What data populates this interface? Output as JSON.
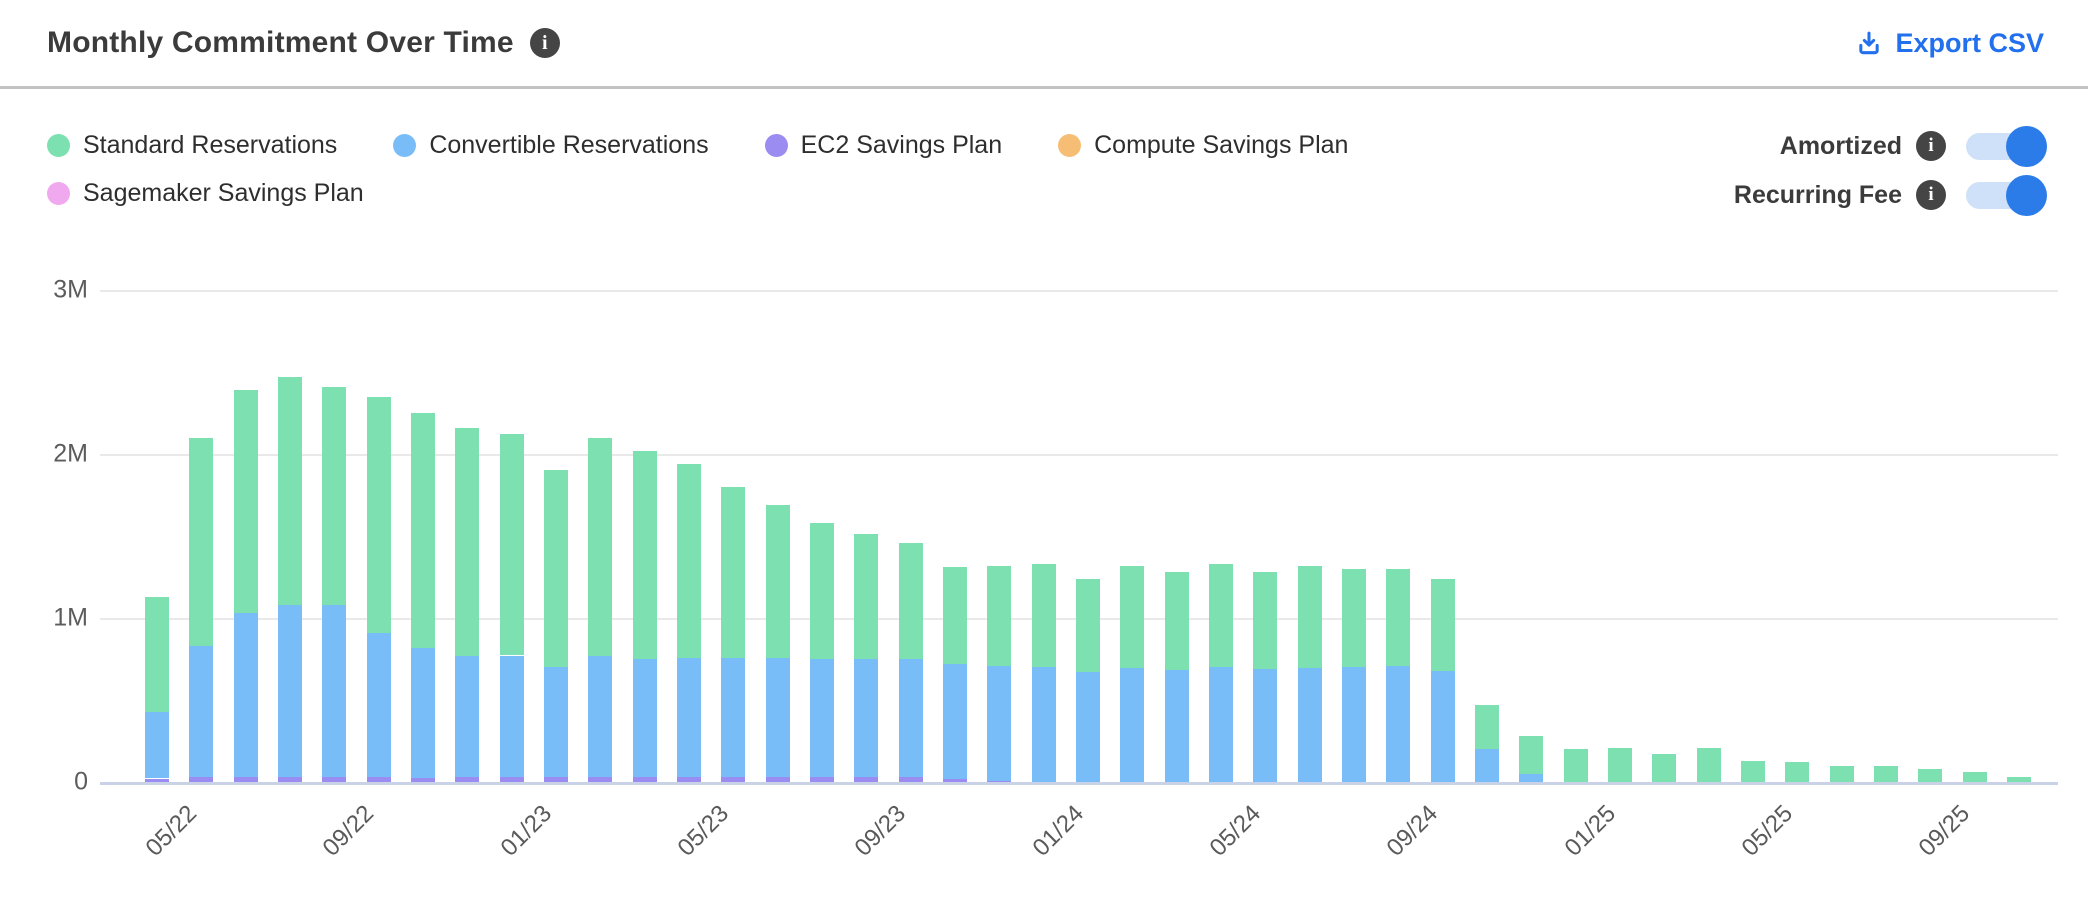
{
  "header": {
    "title": "Monthly Commitment Over Time",
    "title_info_icon": "info-icon",
    "export_label": "Export CSV"
  },
  "legend": {
    "items": [
      {
        "label": "Standard Reservations",
        "color": "#7de0b1"
      },
      {
        "label": "Convertible Reservations",
        "color": "#79bdf8"
      },
      {
        "label": "EC2 Savings Plan",
        "color": "#9a8cf0"
      },
      {
        "label": "Compute Savings Plan",
        "color": "#f6be75"
      },
      {
        "label": "Sagemaker Savings Plan",
        "color": "#f0a9ee"
      }
    ]
  },
  "toggles": [
    {
      "label": "Amortized",
      "state": "on"
    },
    {
      "label": "Recurring Fee",
      "state": "on"
    }
  ],
  "colors": {
    "accent_blue": "#2270ee",
    "toggle_track": "#cfe1f9",
    "toggle_knob": "#2b7ce9",
    "gridline": "#e9e9e9",
    "axis_line": "#c9d2e6"
  },
  "chart_data": {
    "type": "bar",
    "stacked": true,
    "title": "Monthly Commitment Over Time",
    "unit": "M (millions, amortized monthly commitment)",
    "ylim": [
      0,
      3
    ],
    "yticks": [
      {
        "value": 0,
        "label": "0"
      },
      {
        "value": 1,
        "label": "1M"
      },
      {
        "value": 2,
        "label": "2M"
      },
      {
        "value": 3,
        "label": "3M"
      }
    ],
    "x_label_every": 4,
    "x": [
      "05/22",
      "06/22",
      "07/22",
      "08/22",
      "09/22",
      "10/22",
      "11/22",
      "12/22",
      "01/23",
      "02/23",
      "03/23",
      "04/23",
      "05/23",
      "06/23",
      "07/23",
      "08/23",
      "09/23",
      "10/23",
      "11/23",
      "12/23",
      "01/24",
      "02/24",
      "03/24",
      "04/24",
      "05/24",
      "06/24",
      "07/24",
      "08/24",
      "09/24",
      "10/24",
      "11/24",
      "12/24",
      "01/25",
      "02/25",
      "03/25",
      "04/25",
      "05/25",
      "06/25",
      "07/25",
      "08/25",
      "09/25",
      "10/25",
      "11/25"
    ],
    "stack_bottom_to_top": [
      "Sagemaker Savings Plan",
      "EC2 Savings Plan",
      "Convertible Reservations",
      "Standard Reservations",
      "Compute Savings Plan"
    ],
    "series": [
      {
        "name": "Standard Reservations",
        "color": "#7de0b1",
        "values": [
          0.7,
          1.27,
          1.36,
          1.39,
          1.33,
          1.44,
          1.43,
          1.39,
          1.35,
          1.2,
          1.33,
          1.27,
          1.18,
          1.04,
          0.93,
          0.83,
          0.76,
          0.71,
          0.59,
          0.61,
          0.63,
          0.57,
          0.62,
          0.6,
          0.63,
          0.59,
          0.62,
          0.6,
          0.59,
          0.56,
          0.27,
          0.23,
          0.2,
          0.21,
          0.17,
          0.21,
          0.13,
          0.12,
          0.1,
          0.1,
          0.08,
          0.06,
          0.03
        ]
      },
      {
        "name": "Convertible Reservations",
        "color": "#79bdf8",
        "values": [
          0.41,
          0.8,
          1.0,
          1.05,
          1.05,
          0.88,
          0.79,
          0.74,
          0.74,
          0.67,
          0.74,
          0.72,
          0.73,
          0.73,
          0.73,
          0.72,
          0.72,
          0.72,
          0.7,
          0.7,
          0.7,
          0.67,
          0.7,
          0.68,
          0.7,
          0.69,
          0.7,
          0.7,
          0.71,
          0.68,
          0.2,
          0.05,
          0,
          0,
          0,
          0,
          0,
          0,
          0,
          0,
          0,
          0,
          0
        ]
      },
      {
        "name": "EC2 Savings Plan",
        "color": "#9a8cf0",
        "values": [
          0.02,
          0.03,
          0.03,
          0.03,
          0.03,
          0.03,
          0.03,
          0.03,
          0.03,
          0.03,
          0.03,
          0.03,
          0.03,
          0.03,
          0.03,
          0.03,
          0.03,
          0.03,
          0.02,
          0.01,
          0,
          0,
          0,
          0,
          0,
          0,
          0,
          0,
          0,
          0,
          0,
          0,
          0,
          0,
          0,
          0,
          0,
          0,
          0,
          0,
          0,
          0,
          0
        ]
      },
      {
        "name": "Compute Savings Plan",
        "color": "#f6be75",
        "values": [
          0,
          0,
          0,
          0,
          0,
          0,
          0,
          0,
          0,
          0,
          0,
          0,
          0,
          0,
          0,
          0,
          0,
          0,
          0,
          0,
          0,
          0,
          0,
          0,
          0,
          0,
          0,
          0,
          0,
          0,
          0,
          0,
          0,
          0,
          0,
          0,
          0,
          0,
          0,
          0,
          0,
          0,
          0
        ]
      },
      {
        "name": "Sagemaker Savings Plan",
        "color": "#f0a9ee",
        "values": [
          0,
          0,
          0,
          0,
          0,
          0,
          0,
          0,
          0,
          0,
          0,
          0,
          0,
          0,
          0,
          0,
          0,
          0,
          0,
          0,
          0,
          0,
          0,
          0,
          0,
          0,
          0,
          0,
          0,
          0,
          0,
          0,
          0,
          0,
          0,
          0,
          0,
          0,
          0,
          0,
          0,
          0,
          0
        ]
      }
    ]
  }
}
